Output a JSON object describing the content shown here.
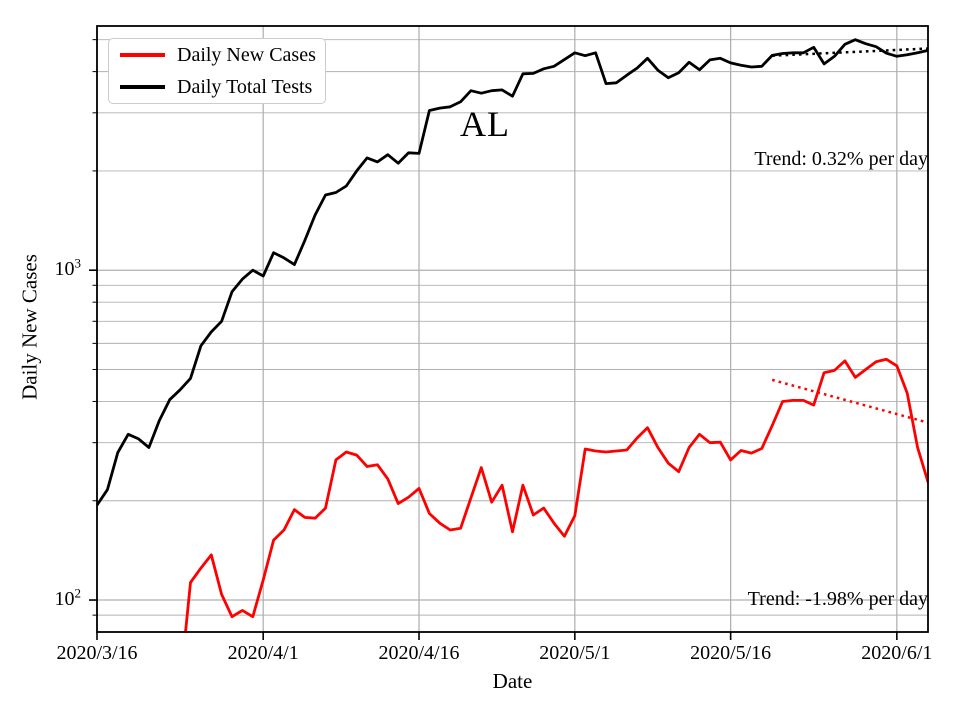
{
  "figure": {
    "background": "#ffffff",
    "grid_color": "#b0b0b0",
    "spine_color": "#000000"
  },
  "chart_data": {
    "type": "line",
    "title": "AL",
    "xlabel": "Date",
    "ylabel": "Daily New Cases",
    "y_scale": "log",
    "legend_position": "upper left",
    "grid": "both",
    "x_axis": {
      "tick_labels": [
        "2020/3/16",
        "2020/4/1",
        "2020/4/16",
        "2020/5/1",
        "2020/5/16",
        "2020/6/1"
      ],
      "tick_days": [
        0,
        16,
        31,
        46,
        61,
        77
      ],
      "range_days": [
        0,
        80
      ]
    },
    "y_axis": {
      "major_ticks": [
        {
          "value": 100,
          "base": "10",
          "exp": "2"
        },
        {
          "value": 1000,
          "base": "10",
          "exp": "3"
        }
      ],
      "minor_tick_values": [
        90,
        200,
        300,
        400,
        500,
        600,
        700,
        800,
        900,
        2000,
        3000,
        4000,
        5000
      ],
      "range": [
        80,
        5500
      ]
    },
    "series": [
      {
        "name": "Daily New Cases",
        "color": "#ff0000",
        "line_style": "solid",
        "start_date": "2020/3/24",
        "start_day": 8,
        "values": [
          55,
          113,
          125,
          137,
          104,
          89,
          93,
          89,
          115,
          152,
          163,
          188,
          178,
          177,
          190,
          266,
          281,
          275,
          254,
          257,
          233,
          196,
          205,
          218,
          183,
          171,
          163,
          165,
          204,
          252,
          198,
          223,
          161,
          223,
          181,
          190,
          171,
          156,
          180,
          287,
          283,
          281,
          283,
          285,
          310,
          333,
          290,
          260,
          245,
          290,
          318,
          300,
          301,
          266,
          284,
          279,
          288,
          338,
          400,
          403,
          403,
          390,
          489,
          497,
          531,
          473,
          500,
          528,
          537,
          513,
          424,
          290,
          228
        ]
      },
      {
        "name": "Daily Total Tests",
        "color": "#000000",
        "line_style": "solid",
        "start_date": "2020/3/16",
        "start_day": 0,
        "values": [
          194,
          216,
          280,
          318,
          308,
          290,
          350,
          405,
          434,
          470,
          590,
          650,
          700,
          860,
          940,
          1000,
          960,
          1130,
          1090,
          1040,
          1230,
          1470,
          1690,
          1720,
          1800,
          2000,
          2190,
          2130,
          2240,
          2110,
          2270,
          2260,
          3050,
          3100,
          3130,
          3240,
          3500,
          3440,
          3500,
          3520,
          3370,
          3940,
          3950,
          4080,
          4150,
          4350,
          4560,
          4470,
          4560,
          3680,
          3700,
          3900,
          4100,
          4390,
          4040,
          3830,
          3970,
          4270,
          4050,
          4340,
          4390,
          4250,
          4180,
          4130,
          4150,
          4480,
          4540,
          4560,
          4560,
          4740,
          4220,
          4450,
          4840,
          5000,
          4860,
          4760,
          4550,
          4450,
          4500,
          4560,
          4640
        ]
      }
    ],
    "trend_lines": [
      {
        "name": "Daily Total Tests trend",
        "annotation": "Trend: 0.32% per day",
        "color": "#000000",
        "line_style": "dotted",
        "start_day": 65,
        "end_day": 80,
        "start_value": 4470,
        "end_value": 4700
      },
      {
        "name": "Daily New Cases trend",
        "annotation": "Trend: -1.98% per day",
        "color": "#ff0000",
        "line_style": "dotted",
        "start_day": 65,
        "end_day": 80,
        "start_value": 465,
        "end_value": 345
      }
    ]
  }
}
